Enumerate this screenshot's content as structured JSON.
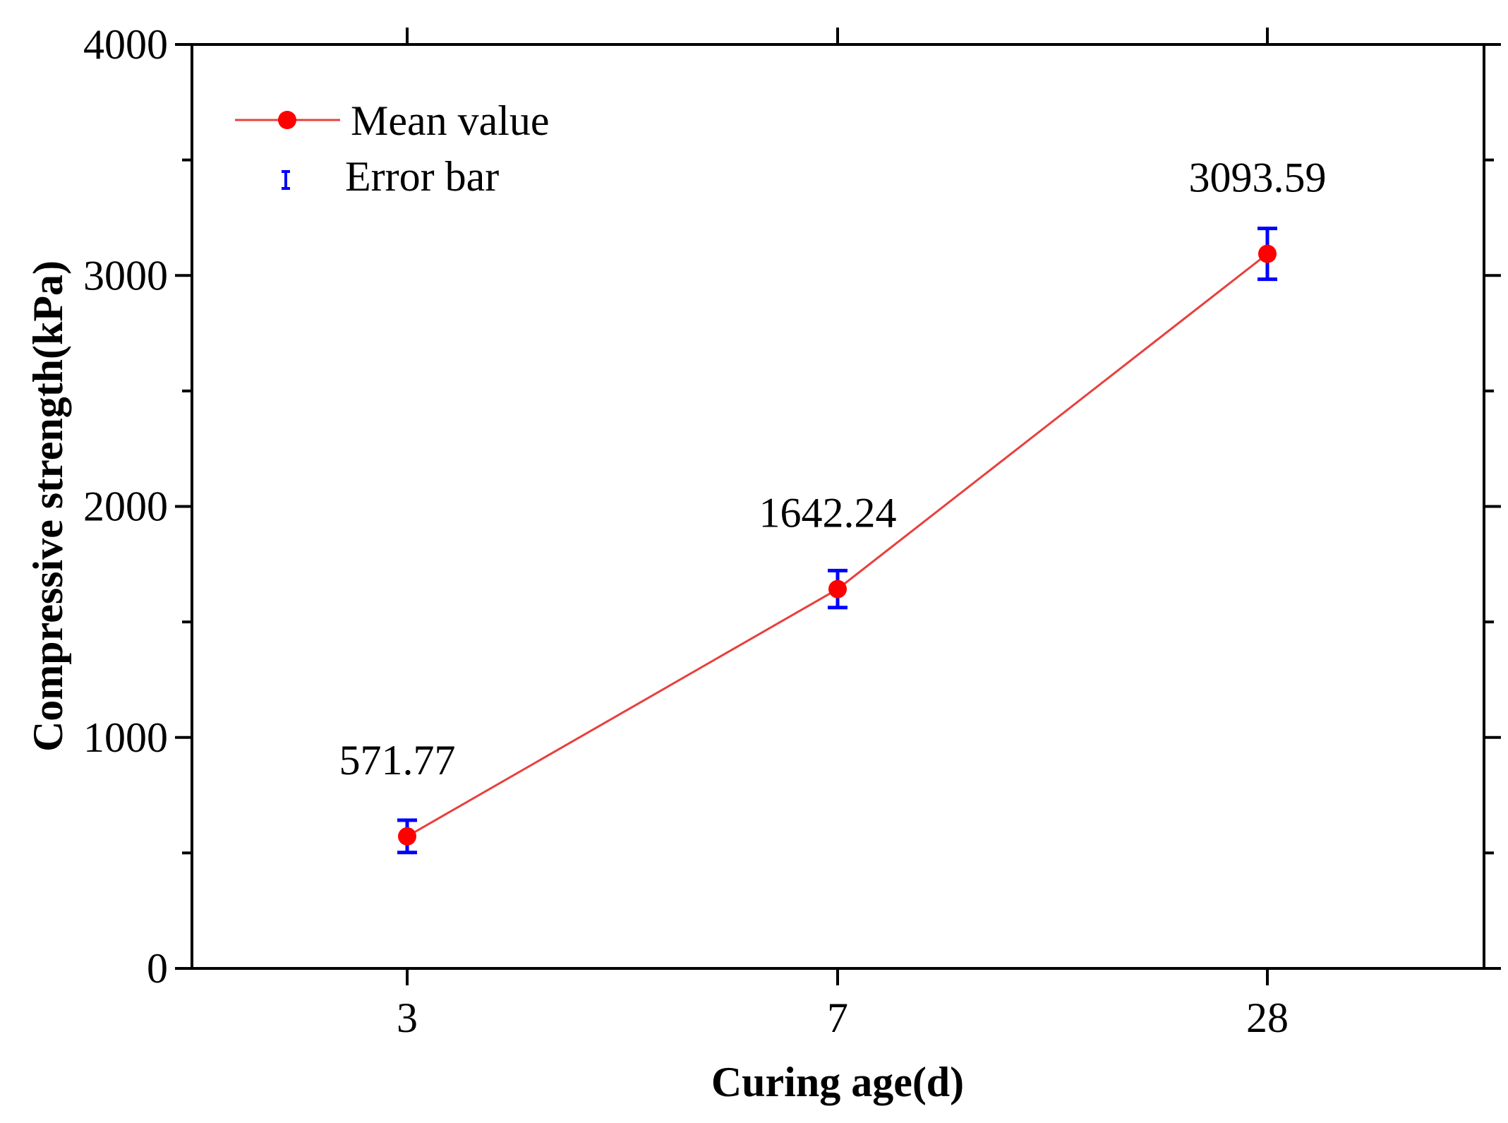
{
  "chart_data": {
    "type": "line",
    "categories": [
      "3",
      "7",
      "28"
    ],
    "series": [
      {
        "name": "Mean value",
        "values": [
          571.77,
          1642.24,
          3093.59
        ],
        "error": [
          70,
          80,
          110
        ],
        "color": "#ff0000",
        "line_color": "#e8403c"
      }
    ],
    "error_bar_label": "Error bar",
    "error_bar_color": "#0000ff",
    "data_labels": [
      "571.77",
      "1642.24",
      "3093.59"
    ],
    "title": "",
    "xlabel": "Curing age(d)",
    "ylabel": "Compressive strength(kPa)",
    "ylim": [
      0,
      4000
    ],
    "yticks": [
      "0",
      "1000",
      "2000",
      "3000",
      "4000"
    ],
    "grid": false,
    "legend_position": "top-left"
  }
}
